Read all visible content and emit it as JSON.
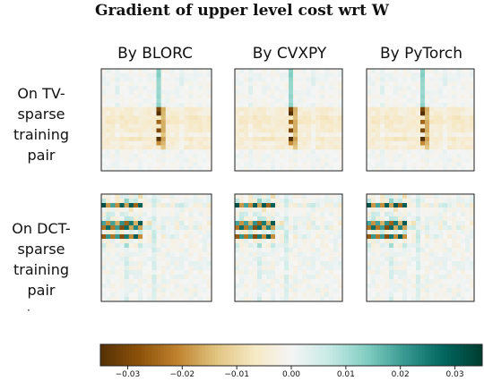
{
  "chart_data": {
    "type": "heatmap",
    "title": "Gradient of upper level cost wrt W",
    "columns": [
      "By BLORC",
      "By CVXPY",
      "By PyTorch"
    ],
    "rows": [
      "On TV-\nsparse\ntraining\npair",
      "On DCT-\nsparse\ntraining\npair"
    ],
    "row_footnote": "·",
    "colorbar": {
      "colormap": "BrBG",
      "vmin": -0.035,
      "vmax": 0.035,
      "ticks": [
        -0.03,
        -0.02,
        -0.01,
        0.0,
        0.01,
        0.02,
        0.03
      ],
      "tick_labels": [
        "−0.03",
        "−0.02",
        "−0.01",
        "0.00",
        "0.01",
        "0.02",
        "0.03"
      ]
    },
    "grid_size": 24,
    "tv_pattern": {
      "band_rows": [
        9,
        10,
        11,
        12,
        13,
        14,
        15,
        16,
        17,
        18
      ],
      "band_value": -0.005,
      "key_column": 12,
      "key_rows": [
        [
          9,
          -0.03
        ],
        [
          10,
          -0.035
        ],
        [
          12,
          -0.025
        ],
        [
          14,
          -0.03
        ],
        [
          16,
          -0.035
        ],
        [
          17,
          -0.02
        ]
      ],
      "cool_column": 12,
      "cool_value": 0.012
    },
    "dct_pattern": {
      "hot_rows": [
        2,
        6,
        7,
        9
      ],
      "hot_cols": [
        0,
        1,
        2,
        3,
        4,
        5,
        6,
        7,
        8
      ],
      "hot_value": 0.032,
      "warm_value": -0.03
    }
  }
}
